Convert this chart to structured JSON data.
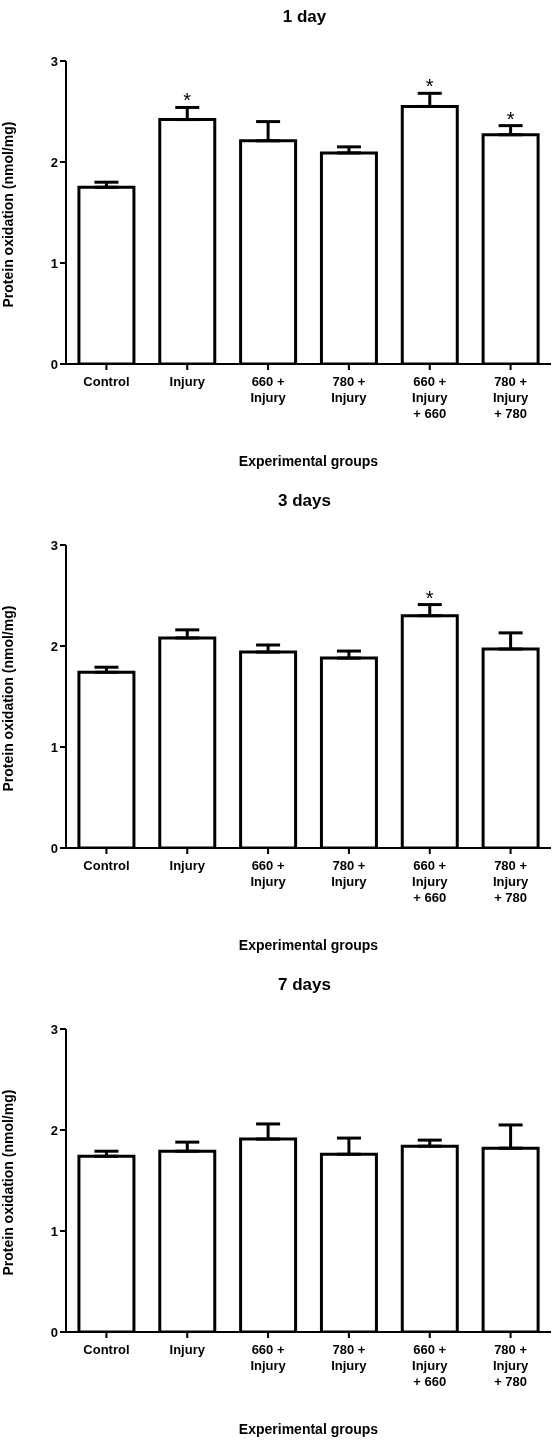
{
  "chart_data": [
    {
      "type": "bar",
      "title": "1 day",
      "xlabel": "Experimental groups",
      "ylabel": "Protein oxidation (nmol/mg)",
      "categories": [
        "Control",
        "Injury",
        "660 +\nInjury",
        "780 +\nInjury",
        "660 +\nInjury\n+ 660",
        "780 +\nInjury\n+ 780"
      ],
      "values": [
        1.75,
        2.42,
        2.21,
        2.09,
        2.55,
        2.27
      ],
      "errors": [
        [
          1.75,
          1.8
        ],
        [
          2.42,
          2.54
        ],
        [
          2.21,
          2.4
        ],
        [
          2.09,
          2.15
        ],
        [
          2.55,
          2.68
        ],
        [
          2.27,
          2.36
        ]
      ],
      "color": "#ffffff",
      "ylim": [
        0,
        3
      ],
      "yticks": [
        0,
        1,
        2,
        3
      ],
      "grid": false,
      "legend": false,
      "annotations": [
        {
          "text": "*",
          "x": "Injury",
          "y": 2.54
        },
        {
          "text": "*",
          "x": "660 +\nInjury\n+ 660",
          "y": 2.68
        },
        {
          "text": "*",
          "x": "780 +\nInjury\n+ 780",
          "y": 2.36
        }
      ]
    },
    {
      "type": "bar",
      "title": "3 days",
      "xlabel": "Experimental groups",
      "ylabel": "Protein oxidation (nmol/mg)",
      "categories": [
        "Control",
        "Injury",
        "660 +\nInjury",
        "780 +\nInjury",
        "660 +\nInjury\n+ 660",
        "780 +\nInjury\n+ 780"
      ],
      "values": [
        1.74,
        2.08,
        1.94,
        1.88,
        2.3,
        1.97
      ],
      "errors": [
        [
          1.74,
          1.79
        ],
        [
          2.08,
          2.16
        ],
        [
          1.94,
          2.01
        ],
        [
          1.88,
          1.95
        ],
        [
          2.3,
          2.41
        ],
        [
          1.97,
          2.13
        ]
      ],
      "color": "#ffffff",
      "ylim": [
        0,
        3
      ],
      "yticks": [
        0,
        1,
        2,
        3
      ],
      "grid": false,
      "legend": false,
      "annotations": [
        {
          "text": "*",
          "x": "660 +\nInjury\n+ 660",
          "y": 2.41
        }
      ]
    },
    {
      "type": "bar",
      "title": "7 days",
      "xlabel": "Experimental groups",
      "ylabel": "Protein oxidation (nmol/mg)",
      "categories": [
        "Control",
        "Injury",
        "660 +\nInjury",
        "780 +\nInjury",
        "660 +\nInjury\n+ 660",
        "780 +\nInjury\n+ 780"
      ],
      "values": [
        1.74,
        1.79,
        1.91,
        1.76,
        1.84,
        1.82
      ],
      "errors": [
        [
          1.74,
          1.79
        ],
        [
          1.79,
          1.88
        ],
        [
          1.91,
          2.06
        ],
        [
          1.76,
          1.92
        ],
        [
          1.84,
          1.9
        ],
        [
          1.82,
          2.05
        ]
      ],
      "color": "#ffffff",
      "ylim": [
        0,
        3
      ],
      "yticks": [
        0,
        1,
        2,
        3
      ],
      "grid": false,
      "legend": false
    }
  ]
}
